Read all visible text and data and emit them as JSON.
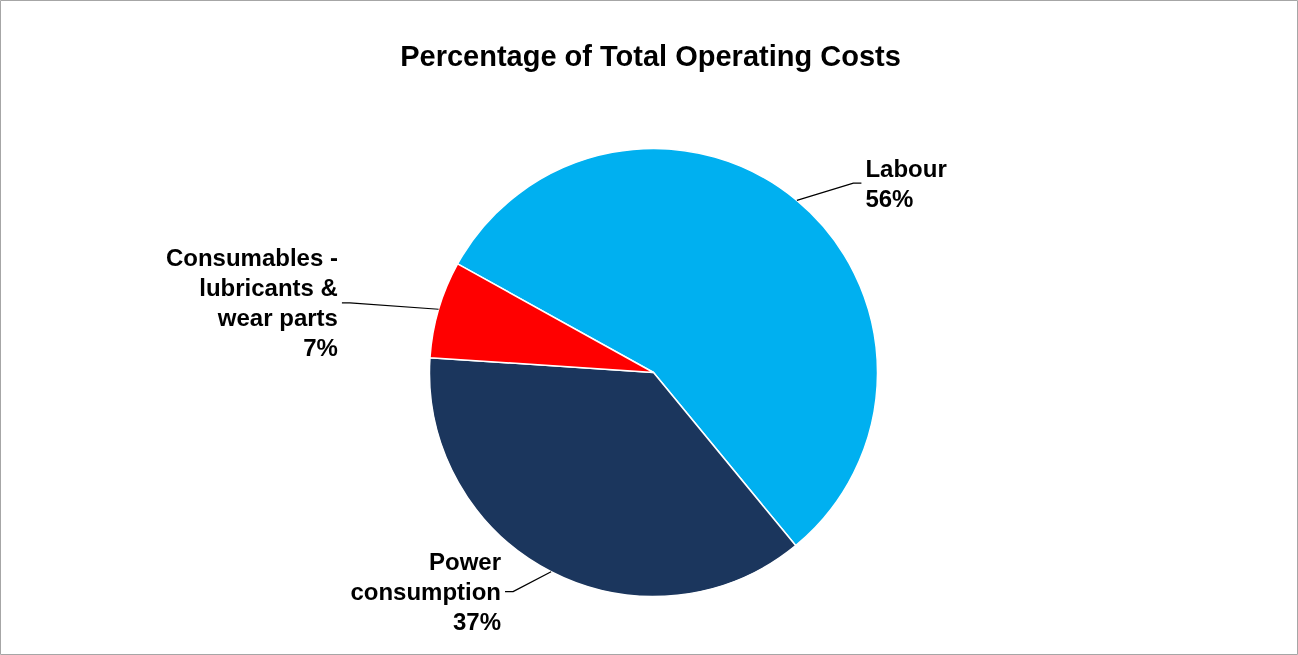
{
  "chart_data": {
    "type": "pie",
    "title": "Percentage of Total Operating Costs",
    "categories": [
      "Labour",
      "Power consumption",
      "Consumables - lubricants & wear parts"
    ],
    "values": [
      56,
      37,
      7
    ],
    "colors": [
      "#00b0f0",
      "#1b365d",
      "#ff0000"
    ],
    "value_labels": [
      "56%",
      "37%",
      "7%"
    ]
  }
}
